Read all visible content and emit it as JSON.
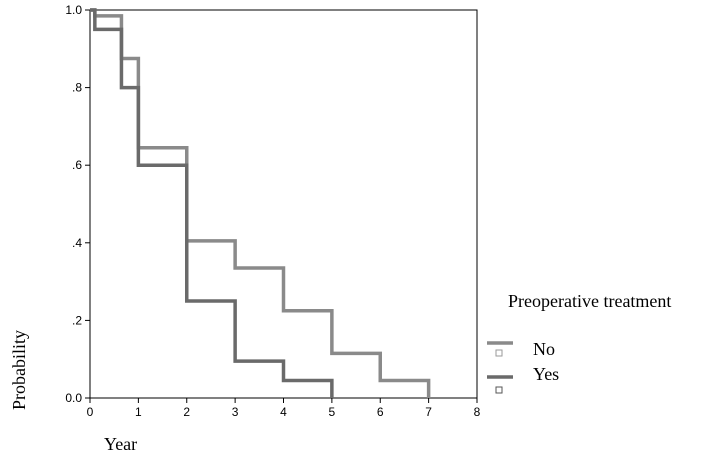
{
  "chart_data": {
    "type": "line",
    "step": true,
    "xlabel": "Year",
    "ylabel": "Probability",
    "xlim": [
      0,
      8
    ],
    "ylim": [
      0,
      1
    ],
    "x_ticks": [
      "0",
      "1",
      "2",
      "3",
      "4",
      "5",
      "6",
      "7",
      "8"
    ],
    "y_ticks": [
      {
        "value": 0.0,
        "label": "0.0"
      },
      {
        "value": 0.2,
        "label": ".2"
      },
      {
        "value": 0.4,
        "label": ".4"
      },
      {
        "value": 0.6,
        "label": ".6"
      },
      {
        "value": 0.8,
        "label": ".8"
      },
      {
        "value": 1.0,
        "label": "1.0"
      }
    ],
    "grid": false,
    "legend": {
      "title": "Preoperative treatment",
      "placement": "right"
    },
    "series": [
      {
        "name": "No",
        "color": "#8a8a8a",
        "points": [
          [
            0,
            1.0
          ],
          [
            0.1,
            0.985
          ],
          [
            0.65,
            0.875
          ],
          [
            1.0,
            0.645
          ],
          [
            2.0,
            0.405
          ],
          [
            3.0,
            0.335
          ],
          [
            4.0,
            0.225
          ],
          [
            5.0,
            0.115
          ],
          [
            6.0,
            0.045
          ],
          [
            7.0,
            0.0
          ]
        ]
      },
      {
        "name": "Yes",
        "color": "#6a6a6a",
        "points": [
          [
            0,
            1.0
          ],
          [
            0.1,
            0.95
          ],
          [
            0.65,
            0.8
          ],
          [
            1.0,
            0.6
          ],
          [
            2.0,
            0.25
          ],
          [
            3.0,
            0.095
          ],
          [
            4.0,
            0.045
          ],
          [
            5.0,
            0.0
          ]
        ]
      }
    ]
  }
}
